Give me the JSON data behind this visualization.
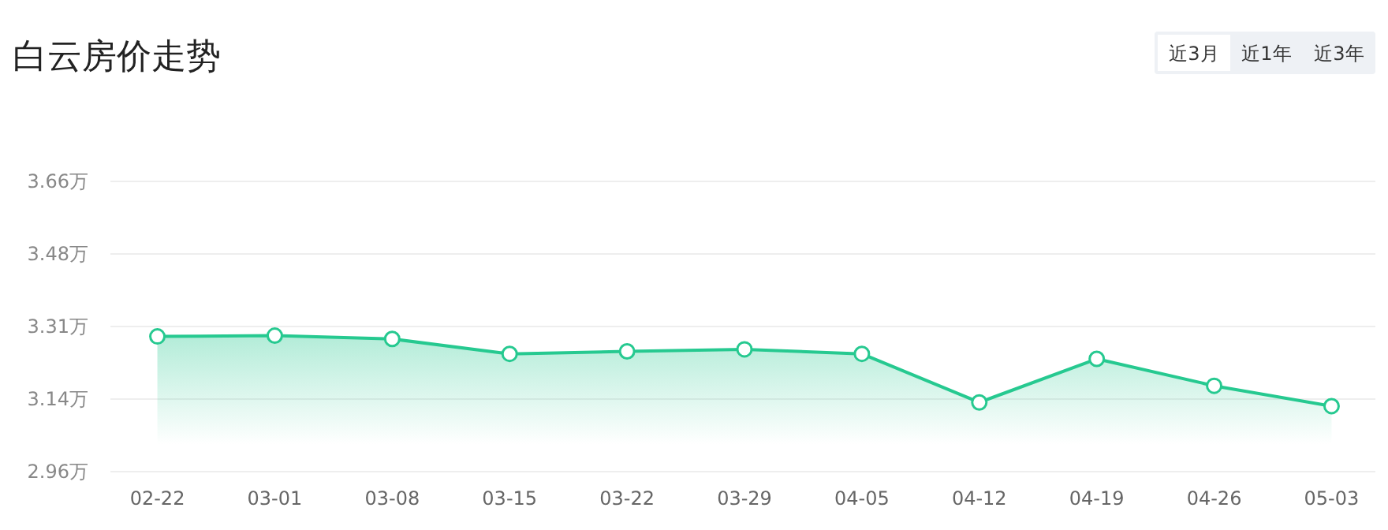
{
  "chart_data": {
    "type": "area",
    "title": "白云房价走势",
    "annotations": [
      "近3月",
      "近1年",
      "近3年"
    ],
    "categories": [
      "02-22",
      "03-01",
      "03-08",
      "03-15",
      "03-22",
      "03-29",
      "04-05",
      "04-12",
      "04-19",
      "04-26",
      "05-03"
    ],
    "series": [
      {
        "color": "#26c990",
        "values": [
          3.286,
          3.288,
          3.28,
          3.244,
          3.25,
          3.255,
          3.244,
          3.127,
          3.232,
          3.167,
          3.118
        ]
      }
    ],
    "ylim": [
      2.96,
      3.66
    ],
    "yticks": [
      {
        "value": 2.96,
        "label": "2.96万"
      },
      {
        "value": 3.135,
        "label": "3.14万"
      },
      {
        "value": 3.31,
        "label": "3.31万"
      },
      {
        "value": 3.485,
        "label": "3.48万"
      },
      {
        "value": 3.66,
        "label": "3.66万"
      }
    ],
    "grid": "y",
    "marker": "circle"
  }
}
